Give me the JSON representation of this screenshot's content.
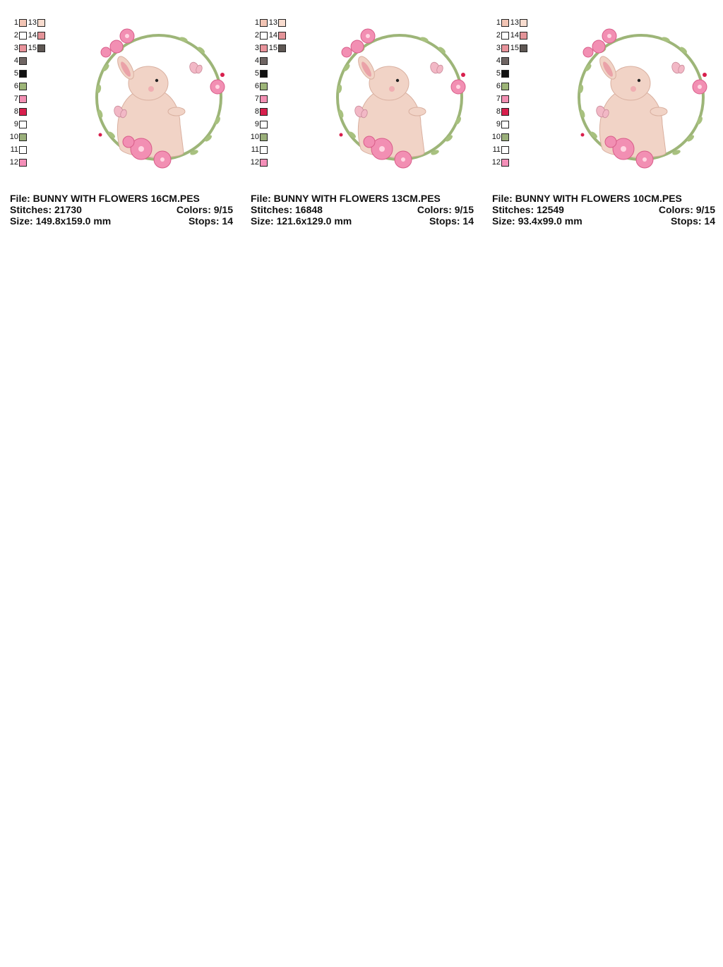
{
  "designs": [
    {
      "file_label": "File:",
      "file_name": "BUNNY WITH FLOWERS 16CM.PES",
      "stitches_label": "Stitches:",
      "stitches": "21730",
      "colors_label": "Colors:",
      "colors": "9/15",
      "size_label": "Size:",
      "size": "149.8x159.0 mm",
      "stops_label": "Stops:",
      "stops": "14"
    },
    {
      "file_label": "File:",
      "file_name": "BUNNY WITH FLOWERS 13CM.PES",
      "stitches_label": "Stitches:",
      "stitches": "16848",
      "colors_label": "Colors:",
      "colors": "9/15",
      "size_label": "Size:",
      "size": "121.6x129.0 mm",
      "stops_label": "Stops:",
      "stops": "14"
    },
    {
      "file_label": "File:",
      "file_name": "BUNNY WITH FLOWERS 10CM.PES",
      "stitches_label": "Stitches:",
      "stitches": "12549",
      "colors_label": "Colors:",
      "colors": "9/15",
      "size_label": "Size:",
      "size": "93.4x99.0 mm",
      "stops_label": "Stops:",
      "stops": "14"
    }
  ],
  "palette": [
    {
      "n": "1",
      "color": "#f2c4b4"
    },
    {
      "n": "2",
      "color": "#ffffff"
    },
    {
      "n": "3",
      "color": "#e8939b"
    },
    {
      "n": "4",
      "color": "#6f6563"
    },
    {
      "n": "5",
      "color": "#111111"
    },
    {
      "n": "6",
      "color": "#9db578"
    },
    {
      "n": "7",
      "color": "#f28fb3"
    },
    {
      "n": "8",
      "color": "#d81f4d"
    },
    {
      "n": "9",
      "color": "#ffffff"
    },
    {
      "n": "10",
      "color": "#9aaf7a"
    },
    {
      "n": "11",
      "color": "#ffffff"
    },
    {
      "n": "12",
      "color": "#f48fb8"
    },
    {
      "n": "13",
      "color": "#f8dccf"
    },
    {
      "n": "14",
      "color": "#e39398"
    },
    {
      "n": "15",
      "color": "#5e5753"
    }
  ]
}
